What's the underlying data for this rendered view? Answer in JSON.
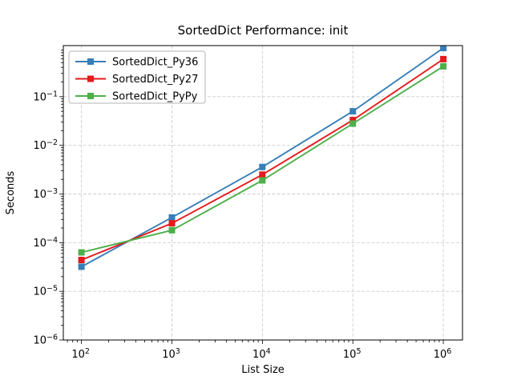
{
  "chart_data": {
    "type": "line",
    "title": "SortedDict Performance: init",
    "xlabel": "List Size",
    "ylabel": "Seconds",
    "x_scale": "log",
    "y_scale": "log",
    "x": [
      100,
      1000,
      10000,
      100000,
      1000000
    ],
    "series": [
      {
        "name": "SortedDict_Py36",
        "color": "#377eb8",
        "values": [
          3.2e-05,
          0.00033,
          0.0036,
          0.05,
          1.0
        ]
      },
      {
        "name": "SortedDict_Py27",
        "color": "#e41a1c",
        "values": [
          4.4e-05,
          0.00025,
          0.0025,
          0.033,
          0.59
        ]
      },
      {
        "name": "SortedDict_PyPy",
        "color": "#4daf4a",
        "values": [
          6.3e-05,
          0.00018,
          0.0019,
          0.028,
          0.42
        ]
      }
    ],
    "xlim": [
      63,
      1630000
    ],
    "ylim": [
      1e-06,
      1.12
    ],
    "xtick_exponents": [
      2,
      3,
      4,
      5,
      6
    ],
    "ytick_exponents": [
      -6,
      -5,
      -4,
      -3,
      -2,
      -1
    ],
    "tick_base": "10",
    "grid": {
      "which": "major",
      "style": "dashed",
      "color": "#cccccc"
    },
    "legend": {
      "position": "upper left",
      "entries": [
        "SortedDict_Py36",
        "SortedDict_Py27",
        "SortedDict_PyPy"
      ]
    },
    "marker": "square",
    "spine_color": "#000000"
  }
}
